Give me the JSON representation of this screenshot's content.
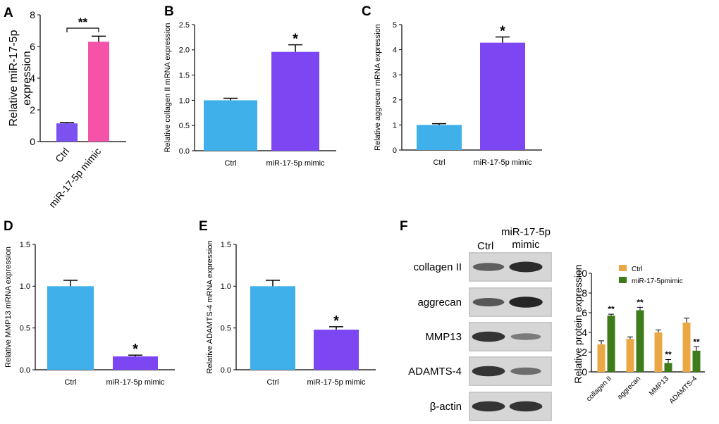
{
  "panels": {
    "A": "A",
    "B": "B",
    "C": "C",
    "D": "D",
    "E": "E",
    "F": "F"
  },
  "colors": {
    "ctrl_blue": "#3fb0ea",
    "mimic_purple": "#7c47f3",
    "a_ctrl": "#7b52f0",
    "a_mimic": "#f453a8",
    "f_ctrl": "#eaa845",
    "f_mimic": "#3e7b1b"
  },
  "chart_data": [
    {
      "id": "A",
      "type": "bar",
      "categories": [
        "Ctrl",
        "miR-17-5p mimic"
      ],
      "values": [
        1.15,
        6.3
      ],
      "errors": [
        0.05,
        0.35
      ],
      "ylabel_lines": [
        "Relative miR-17-5p",
        "expression"
      ],
      "ylim": [
        0,
        8
      ],
      "yticks": [
        "0",
        "2",
        "4",
        "6",
        "8"
      ],
      "significance": "**",
      "bracket": true
    },
    {
      "id": "B",
      "type": "bar",
      "categories": [
        "Ctrl",
        "miR-17-5p mimic"
      ],
      "values": [
        1.0,
        1.96
      ],
      "errors": [
        0.04,
        0.14
      ],
      "ylabel": "Relative collagen II mRNA expression",
      "ylim": [
        0,
        2.5
      ],
      "yticks": [
        "0.0",
        "0.5",
        "1.0",
        "1.5",
        "2.0",
        "2.5"
      ],
      "significance": "*"
    },
    {
      "id": "C",
      "type": "bar",
      "categories": [
        "Ctrl",
        "miR-17-5p mimic"
      ],
      "values": [
        1.0,
        4.28
      ],
      "errors": [
        0.05,
        0.23
      ],
      "ylabel": "Relative aggrecan mRNA expression",
      "ylim": [
        0,
        5
      ],
      "yticks": [
        "0",
        "1",
        "2",
        "3",
        "4",
        "5"
      ],
      "significance": "*"
    },
    {
      "id": "D",
      "type": "bar",
      "categories": [
        "Ctrl",
        "miR-17-5p mimic"
      ],
      "values": [
        1.0,
        0.16
      ],
      "errors": [
        0.07,
        0.015
      ],
      "ylabel": "Relative MMP13 mRNA expression",
      "ylim": [
        0,
        1.5
      ],
      "yticks": [
        "0.0",
        "0.5",
        "1.0",
        "1.5"
      ],
      "significance": "*"
    },
    {
      "id": "E",
      "type": "bar",
      "categories": [
        "Ctrl",
        "miR-17-5p mimic"
      ],
      "values": [
        1.0,
        0.48
      ],
      "errors": [
        0.07,
        0.035
      ],
      "ylabel": "Relative ADAMTS-4 mRNA expression",
      "ylim": [
        0,
        1.5
      ],
      "yticks": [
        "0.0",
        "0.5",
        "1.0",
        "1.5"
      ],
      "significance": "*"
    },
    {
      "id": "F",
      "type": "bar",
      "categories": [
        "collagen II",
        "aggrecan",
        "MMP13",
        "ADAMTS-4"
      ],
      "series": [
        {
          "name": "Ctrl",
          "values": [
            2.8,
            3.35,
            4.0,
            5.0
          ],
          "errors": [
            0.35,
            0.2,
            0.25,
            0.45
          ]
        },
        {
          "name": "miR-17-5pmimic",
          "values": [
            5.7,
            6.25,
            0.9,
            2.15
          ],
          "errors": [
            0.15,
            0.3,
            0.35,
            0.4
          ]
        }
      ],
      "significance": [
        "**",
        "**",
        "**",
        "**"
      ],
      "ylabel": "Relative protein expression",
      "ylim": [
        0,
        10
      ],
      "yticks": [
        "0",
        "2",
        "4",
        "6",
        "8",
        "10"
      ],
      "legend": "top-left"
    }
  ],
  "western_blot": {
    "header_ctrl": "Ctrl",
    "header_mimic_lines": [
      "miR-17-5p",
      "mimic"
    ],
    "rows": [
      {
        "label": "collagen II",
        "ctrl_intensity": 0.55,
        "mimic_intensity": 0.9
      },
      {
        "label": "aggrecan",
        "ctrl_intensity": 0.6,
        "mimic_intensity": 0.95
      },
      {
        "label": "MMP13",
        "ctrl_intensity": 0.85,
        "mimic_intensity": 0.35
      },
      {
        "label": "ADAMTS-4",
        "ctrl_intensity": 0.85,
        "mimic_intensity": 0.45
      },
      {
        "label": "β-actin",
        "ctrl_intensity": 0.85,
        "mimic_intensity": 0.85
      }
    ]
  }
}
